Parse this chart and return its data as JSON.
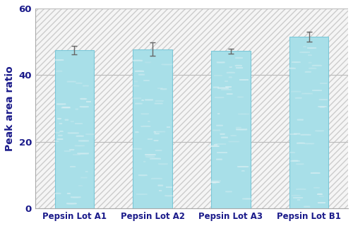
{
  "categories": [
    "Pepsin Lot A1",
    "Pepsin Lot A2",
    "Pepsin Lot A3",
    "Pepsin Lot B1"
  ],
  "values": [
    47.5,
    47.8,
    47.2,
    51.5
  ],
  "errors": [
    1.2,
    2.0,
    0.8,
    1.5
  ],
  "ylabel": "Peak area ratio",
  "ylim": [
    0,
    60
  ],
  "yticks": [
    0,
    20,
    40,
    60
  ],
  "bar_color_face": "#a8dfe8",
  "bar_color_edge": "#7cc8d8",
  "background_color": "#ffffff",
  "hatch_color": "#cccccc",
  "ylabel_color": "#1a1a8a",
  "tick_label_color": "#1a1a8a",
  "bar_width": 0.5,
  "errorbar_color": "#666666",
  "grid_color": "#bbbbbb",
  "figsize": [
    5.0,
    3.2
  ],
  "dpi": 100
}
